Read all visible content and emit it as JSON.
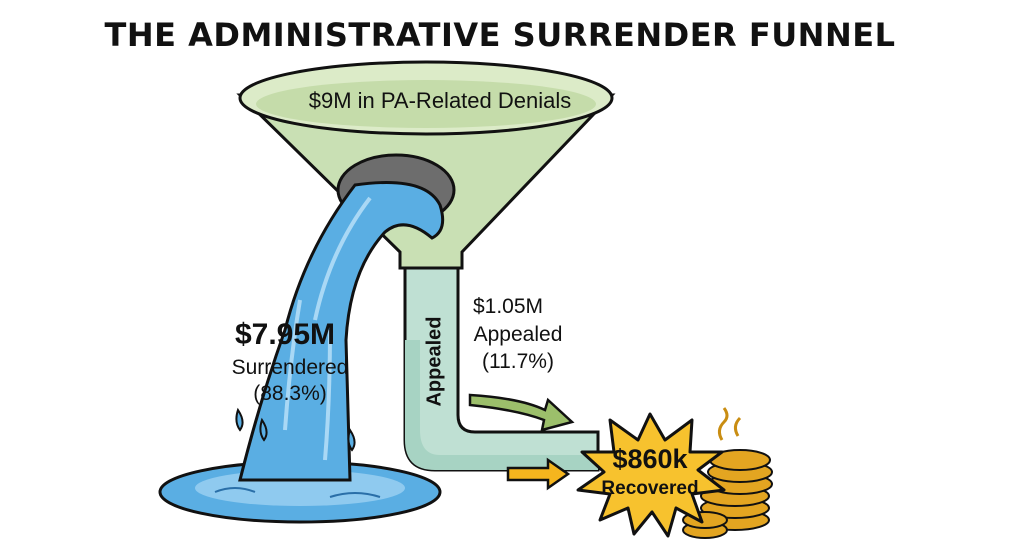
{
  "title": "THE ADMINISTRATIVE SURRENDER FUNNEL",
  "funnel": {
    "label": "$9M in PA-Related Denials"
  },
  "surrendered": {
    "amount": "$7.95M",
    "label": "Surrendered",
    "percent": "(88.3%)"
  },
  "appealed": {
    "amount": "$1.05M",
    "label": "Appealed",
    "percent": "(11.7%)",
    "pipe_label": "Appealed"
  },
  "recovered": {
    "amount": "$860k",
    "label": "Recovered"
  },
  "icons": [
    "water-stream-icon",
    "coin-stack-icon",
    "starburst-icon",
    "arrow-icon"
  ],
  "colors": {
    "funnel": "#c9e0b4",
    "water": "#5aaee3",
    "burst": "#f7c22e",
    "coin": "#e3a521",
    "pipe": "#bfe0d3"
  }
}
